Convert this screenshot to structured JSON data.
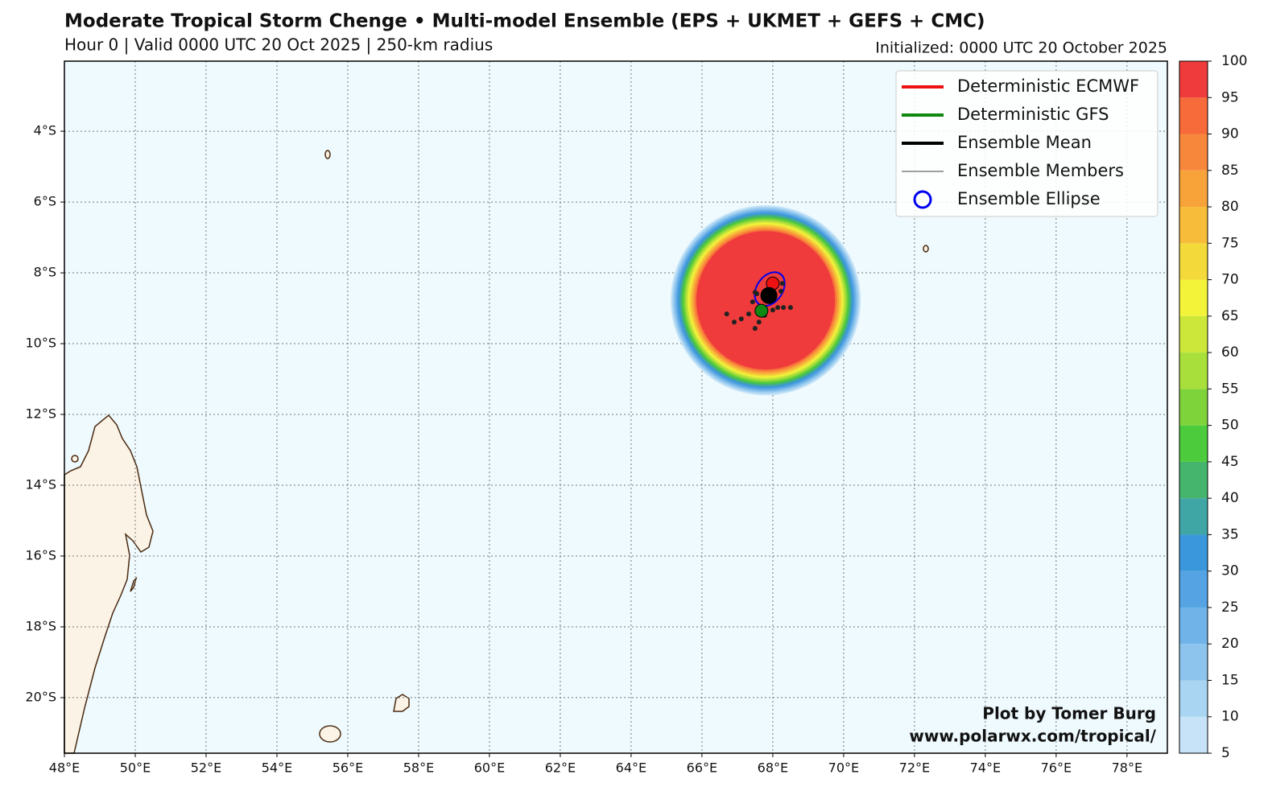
{
  "header": {
    "title": "Moderate Tropical Storm Chenge • Multi-model Ensemble (EPS + UKMET + GEFS + CMC)",
    "subtitle": "Hour 0 | Valid 0000 UTC 20 Oct 2025 | 250-km radius",
    "initialized": "Initialized: 0000 UTC 20 October 2025"
  },
  "map": {
    "xlim": [
      48,
      79.14
    ],
    "ylim": [
      -21.57,
      -2.02
    ],
    "lon_ticks": [
      {
        "value": 48,
        "label": "48°E"
      },
      {
        "value": 50,
        "label": "50°E"
      },
      {
        "value": 52,
        "label": "52°E"
      },
      {
        "value": 54,
        "label": "54°E"
      },
      {
        "value": 56,
        "label": "56°E"
      },
      {
        "value": 58,
        "label": "58°E"
      },
      {
        "value": 60,
        "label": "60°E"
      },
      {
        "value": 62,
        "label": "62°E"
      },
      {
        "value": 64,
        "label": "64°E"
      },
      {
        "value": 66,
        "label": "66°E"
      },
      {
        "value": 68,
        "label": "68°E"
      },
      {
        "value": 70,
        "label": "70°E"
      },
      {
        "value": 72,
        "label": "72°E"
      },
      {
        "value": 74,
        "label": "74°E"
      },
      {
        "value": 76,
        "label": "76°E"
      },
      {
        "value": 78,
        "label": "78°E"
      }
    ],
    "lat_ticks": [
      {
        "value": -4,
        "label": "4°S"
      },
      {
        "value": -6,
        "label": "6°S"
      },
      {
        "value": -8,
        "label": "8°S"
      },
      {
        "value": -10,
        "label": "10°S"
      },
      {
        "value": -12,
        "label": "12°S"
      },
      {
        "value": -14,
        "label": "14°S"
      },
      {
        "value": -16,
        "label": "16°S"
      },
      {
        "value": -18,
        "label": "18°S"
      },
      {
        "value": -20,
        "label": "20°S"
      }
    ],
    "grid": true
  },
  "legend": [
    {
      "name": "Deterministic ECMWF",
      "color": "#ee1111"
    },
    {
      "name": "Deterministic GFS",
      "color": "#118811"
    },
    {
      "name": "Ensemble Mean",
      "color": "#000000"
    },
    {
      "name": "Ensemble Members",
      "color": "#000000"
    },
    {
      "name": "Ensemble Ellipse",
      "color": "#0000ee"
    }
  ],
  "positions": {
    "ecmwf": {
      "lon": 68.0,
      "lat": -8.3
    },
    "gfs": {
      "lon": 67.68,
      "lat": -9.07
    },
    "mean": {
      "lon": 67.89,
      "lat": -8.64
    },
    "members": {
      "lon": [
        66.7,
        66.91,
        67.11,
        67.32,
        67.5,
        67.61,
        67.43,
        67.55,
        68.0,
        68.14,
        68.3,
        68.5,
        68.23,
        68.27,
        67.5,
        67.77
      ],
      "lat": [
        -9.16,
        -9.39,
        -9.3,
        -9.16,
        -9.57,
        -9.39,
        -8.82,
        -8.59,
        -9.05,
        -8.98,
        -8.98,
        -8.98,
        -8.52,
        -8.3,
        -8.55,
        -9.2
      ]
    }
  },
  "colorbar": {
    "ticks": [
      5,
      10,
      15,
      20,
      25,
      30,
      35,
      40,
      45,
      50,
      55,
      60,
      65,
      70,
      75,
      80,
      85,
      90,
      95,
      100
    ],
    "colors": [
      "#c6e3f7",
      "#a9d4f2",
      "#8cc4ee",
      "#6fb3e8",
      "#55a3e2",
      "#3b97db",
      "#40a5a5",
      "#45b56e",
      "#4ccb3c",
      "#7fd33a",
      "#a8df3a",
      "#cce63a",
      "#f3f33a",
      "#f3d93a",
      "#f7bd3a",
      "#f8a33a",
      "#f7873a",
      "#f76a3a",
      "#ef3b3b"
    ]
  },
  "credit": [
    "Plot by Tomer Burg",
    "www.polarwx.com/tropical/"
  ]
}
